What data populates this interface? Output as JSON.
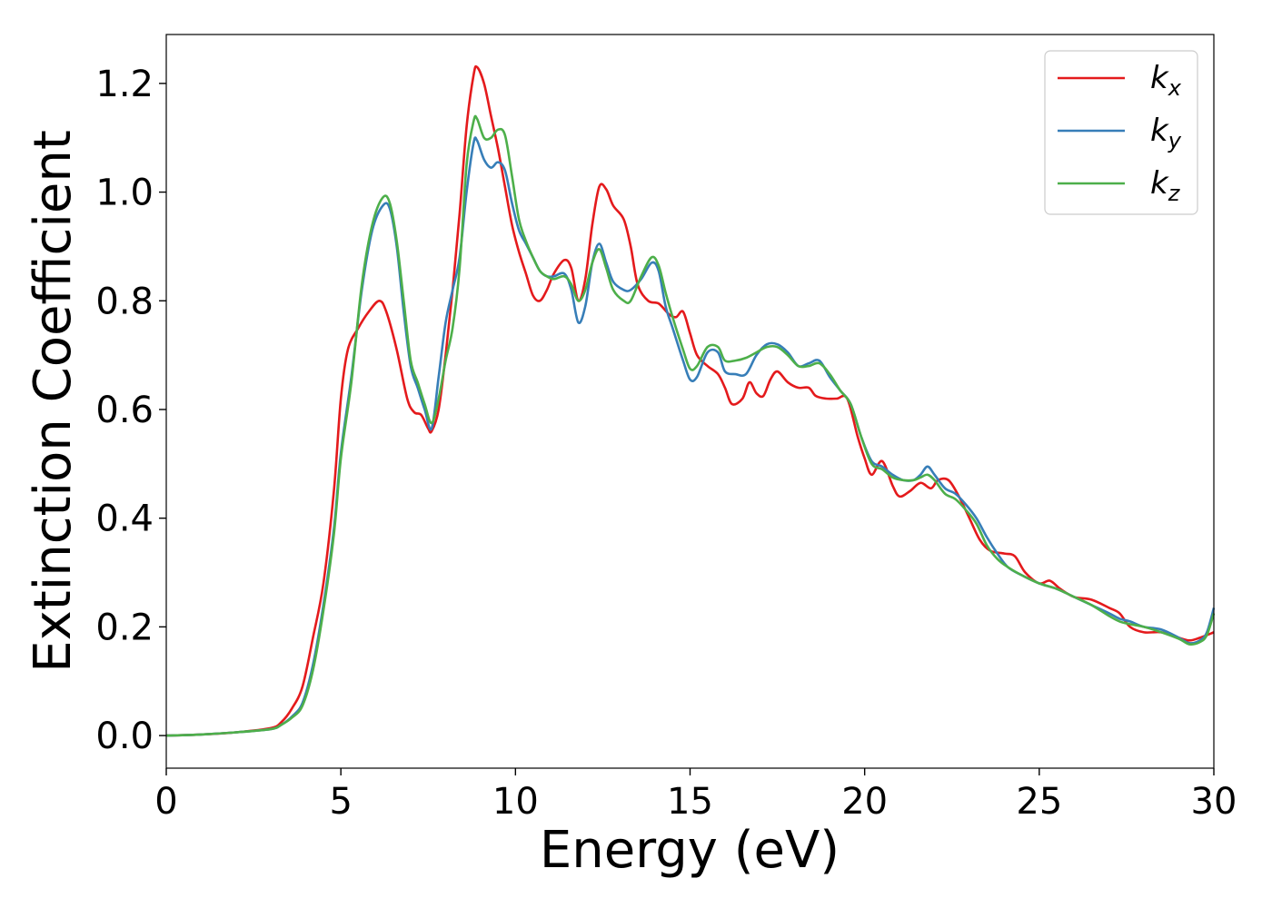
{
  "chart_data": {
    "type": "line",
    "title": "",
    "xlabel": "Energy (eV)",
    "ylabel": "Extinction Coefficient",
    "xlim": [
      0,
      30
    ],
    "ylim": [
      -0.06,
      1.29
    ],
    "xticks": [
      0,
      5,
      10,
      15,
      20,
      25,
      30
    ],
    "xtick_labels": [
      "0",
      "5",
      "10",
      "15",
      "20",
      "25",
      "30"
    ],
    "yticks": [
      0.0,
      0.2,
      0.4,
      0.6,
      0.8,
      1.0,
      1.2
    ],
    "ytick_labels": [
      "0.0",
      "0.2",
      "0.4",
      "0.6",
      "0.8",
      "1.0",
      "1.2"
    ],
    "grid": false,
    "legend_position": "top-right",
    "series": [
      {
        "name": "k",
        "subscript": "x",
        "color": "#e41a1c",
        "points": [
          [
            0,
            0.0
          ],
          [
            1,
            0.002
          ],
          [
            2,
            0.006
          ],
          [
            3,
            0.014
          ],
          [
            3.3,
            0.025
          ],
          [
            3.6,
            0.05
          ],
          [
            3.9,
            0.09
          ],
          [
            4.2,
            0.18
          ],
          [
            4.5,
            0.28
          ],
          [
            4.8,
            0.45
          ],
          [
            5.0,
            0.62
          ],
          [
            5.2,
            0.71
          ],
          [
            5.5,
            0.75
          ],
          [
            5.8,
            0.78
          ],
          [
            6.1,
            0.8
          ],
          [
            6.3,
            0.78
          ],
          [
            6.6,
            0.71
          ],
          [
            6.9,
            0.62
          ],
          [
            7.1,
            0.595
          ],
          [
            7.3,
            0.59
          ],
          [
            7.5,
            0.565
          ],
          [
            7.6,
            0.56
          ],
          [
            7.8,
            0.6
          ],
          [
            8.0,
            0.7
          ],
          [
            8.2,
            0.82
          ],
          [
            8.4,
            0.96
          ],
          [
            8.6,
            1.12
          ],
          [
            8.8,
            1.215
          ],
          [
            8.9,
            1.23
          ],
          [
            9.1,
            1.2
          ],
          [
            9.3,
            1.14
          ],
          [
            9.5,
            1.08
          ],
          [
            9.7,
            1.01
          ],
          [
            9.9,
            0.94
          ],
          [
            10.1,
            0.89
          ],
          [
            10.3,
            0.85
          ],
          [
            10.5,
            0.81
          ],
          [
            10.7,
            0.8
          ],
          [
            10.9,
            0.82
          ],
          [
            11.1,
            0.85
          ],
          [
            11.4,
            0.875
          ],
          [
            11.6,
            0.86
          ],
          [
            11.8,
            0.8
          ],
          [
            12.0,
            0.84
          ],
          [
            12.2,
            0.94
          ],
          [
            12.4,
            1.01
          ],
          [
            12.6,
            1.005
          ],
          [
            12.8,
            0.975
          ],
          [
            13.1,
            0.95
          ],
          [
            13.3,
            0.9
          ],
          [
            13.5,
            0.83
          ],
          [
            13.8,
            0.8
          ],
          [
            14.1,
            0.795
          ],
          [
            14.4,
            0.775
          ],
          [
            14.6,
            0.77
          ],
          [
            14.8,
            0.78
          ],
          [
            15.0,
            0.74
          ],
          [
            15.2,
            0.7
          ],
          [
            15.5,
            0.68
          ],
          [
            15.8,
            0.665
          ],
          [
            16.0,
            0.64
          ],
          [
            16.2,
            0.61
          ],
          [
            16.5,
            0.62
          ],
          [
            16.7,
            0.65
          ],
          [
            16.9,
            0.63
          ],
          [
            17.1,
            0.625
          ],
          [
            17.3,
            0.655
          ],
          [
            17.5,
            0.67
          ],
          [
            17.8,
            0.65
          ],
          [
            18.1,
            0.64
          ],
          [
            18.4,
            0.64
          ],
          [
            18.6,
            0.625
          ],
          [
            18.9,
            0.62
          ],
          [
            19.2,
            0.62
          ],
          [
            19.5,
            0.62
          ],
          [
            19.8,
            0.55
          ],
          [
            20.0,
            0.51
          ],
          [
            20.2,
            0.48
          ],
          [
            20.5,
            0.505
          ],
          [
            20.8,
            0.46
          ],
          [
            21.0,
            0.44
          ],
          [
            21.3,
            0.45
          ],
          [
            21.6,
            0.465
          ],
          [
            21.9,
            0.455
          ],
          [
            22.1,
            0.47
          ],
          [
            22.4,
            0.47
          ],
          [
            22.7,
            0.44
          ],
          [
            23.0,
            0.4
          ],
          [
            23.3,
            0.36
          ],
          [
            23.6,
            0.34
          ],
          [
            24.0,
            0.335
          ],
          [
            24.3,
            0.33
          ],
          [
            24.6,
            0.3
          ],
          [
            25.0,
            0.28
          ],
          [
            25.3,
            0.285
          ],
          [
            25.6,
            0.27
          ],
          [
            26.0,
            0.255
          ],
          [
            26.5,
            0.25
          ],
          [
            27.0,
            0.235
          ],
          [
            27.3,
            0.225
          ],
          [
            27.6,
            0.2
          ],
          [
            28.0,
            0.19
          ],
          [
            28.5,
            0.19
          ],
          [
            29.0,
            0.18
          ],
          [
            29.3,
            0.175
          ],
          [
            29.6,
            0.18
          ],
          [
            30.0,
            0.19
          ]
        ]
      },
      {
        "name": "k",
        "subscript": "y",
        "color": "#377eb8",
        "points": [
          [
            0,
            0.0
          ],
          [
            1,
            0.002
          ],
          [
            2,
            0.006
          ],
          [
            3,
            0.012
          ],
          [
            3.3,
            0.02
          ],
          [
            3.6,
            0.035
          ],
          [
            3.9,
            0.06
          ],
          [
            4.2,
            0.13
          ],
          [
            4.5,
            0.24
          ],
          [
            4.8,
            0.38
          ],
          [
            5.0,
            0.52
          ],
          [
            5.3,
            0.66
          ],
          [
            5.6,
            0.82
          ],
          [
            5.9,
            0.93
          ],
          [
            6.2,
            0.975
          ],
          [
            6.4,
            0.97
          ],
          [
            6.6,
            0.9
          ],
          [
            6.8,
            0.78
          ],
          [
            7.0,
            0.68
          ],
          [
            7.2,
            0.64
          ],
          [
            7.4,
            0.6
          ],
          [
            7.6,
            0.565
          ],
          [
            7.8,
            0.66
          ],
          [
            8.0,
            0.76
          ],
          [
            8.2,
            0.82
          ],
          [
            8.4,
            0.88
          ],
          [
            8.6,
            1.0
          ],
          [
            8.8,
            1.09
          ],
          [
            8.9,
            1.095
          ],
          [
            9.1,
            1.06
          ],
          [
            9.3,
            1.045
          ],
          [
            9.5,
            1.055
          ],
          [
            9.7,
            1.04
          ],
          [
            9.9,
            0.98
          ],
          [
            10.1,
            0.93
          ],
          [
            10.3,
            0.905
          ],
          [
            10.5,
            0.88
          ],
          [
            10.7,
            0.855
          ],
          [
            10.9,
            0.845
          ],
          [
            11.1,
            0.845
          ],
          [
            11.4,
            0.85
          ],
          [
            11.6,
            0.82
          ],
          [
            11.8,
            0.76
          ],
          [
            12.0,
            0.79
          ],
          [
            12.2,
            0.87
          ],
          [
            12.4,
            0.905
          ],
          [
            12.6,
            0.87
          ],
          [
            12.8,
            0.835
          ],
          [
            13.1,
            0.82
          ],
          [
            13.3,
            0.82
          ],
          [
            13.6,
            0.84
          ],
          [
            13.9,
            0.87
          ],
          [
            14.1,
            0.855
          ],
          [
            14.3,
            0.79
          ],
          [
            14.5,
            0.75
          ],
          [
            14.8,
            0.69
          ],
          [
            15.0,
            0.655
          ],
          [
            15.2,
            0.66
          ],
          [
            15.5,
            0.705
          ],
          [
            15.8,
            0.705
          ],
          [
            16.0,
            0.67
          ],
          [
            16.3,
            0.665
          ],
          [
            16.6,
            0.665
          ],
          [
            16.9,
            0.7
          ],
          [
            17.2,
            0.72
          ],
          [
            17.5,
            0.72
          ],
          [
            17.8,
            0.705
          ],
          [
            18.1,
            0.68
          ],
          [
            18.4,
            0.685
          ],
          [
            18.7,
            0.69
          ],
          [
            19.0,
            0.66
          ],
          [
            19.3,
            0.635
          ],
          [
            19.6,
            0.61
          ],
          [
            19.9,
            0.55
          ],
          [
            20.2,
            0.505
          ],
          [
            20.5,
            0.495
          ],
          [
            20.8,
            0.48
          ],
          [
            21.1,
            0.47
          ],
          [
            21.4,
            0.47
          ],
          [
            21.6,
            0.48
          ],
          [
            21.8,
            0.495
          ],
          [
            22.0,
            0.48
          ],
          [
            22.3,
            0.455
          ],
          [
            22.6,
            0.445
          ],
          [
            22.9,
            0.425
          ],
          [
            23.2,
            0.4
          ],
          [
            23.5,
            0.365
          ],
          [
            23.8,
            0.335
          ],
          [
            24.1,
            0.31
          ],
          [
            24.5,
            0.295
          ],
          [
            25.0,
            0.28
          ],
          [
            25.5,
            0.27
          ],
          [
            26.0,
            0.255
          ],
          [
            26.5,
            0.24
          ],
          [
            27.0,
            0.225
          ],
          [
            27.3,
            0.215
          ],
          [
            27.6,
            0.21
          ],
          [
            28.0,
            0.2
          ],
          [
            28.5,
            0.195
          ],
          [
            29.0,
            0.18
          ],
          [
            29.3,
            0.17
          ],
          [
            29.6,
            0.175
          ],
          [
            29.8,
            0.19
          ],
          [
            30.0,
            0.235
          ]
        ]
      },
      {
        "name": "k",
        "subscript": "z",
        "color": "#4daf4a",
        "points": [
          [
            0,
            0.0
          ],
          [
            1,
            0.002
          ],
          [
            2,
            0.006
          ],
          [
            3,
            0.012
          ],
          [
            3.3,
            0.02
          ],
          [
            3.6,
            0.033
          ],
          [
            3.9,
            0.055
          ],
          [
            4.2,
            0.12
          ],
          [
            4.5,
            0.23
          ],
          [
            4.8,
            0.37
          ],
          [
            5.0,
            0.51
          ],
          [
            5.3,
            0.65
          ],
          [
            5.6,
            0.83
          ],
          [
            5.9,
            0.94
          ],
          [
            6.2,
            0.99
          ],
          [
            6.4,
            0.98
          ],
          [
            6.6,
            0.91
          ],
          [
            6.8,
            0.8
          ],
          [
            7.0,
            0.69
          ],
          [
            7.2,
            0.65
          ],
          [
            7.4,
            0.61
          ],
          [
            7.6,
            0.575
          ],
          [
            7.8,
            0.62
          ],
          [
            8.0,
            0.69
          ],
          [
            8.2,
            0.75
          ],
          [
            8.4,
            0.86
          ],
          [
            8.6,
            1.05
          ],
          [
            8.8,
            1.13
          ],
          [
            8.9,
            1.135
          ],
          [
            9.1,
            1.1
          ],
          [
            9.3,
            1.1
          ],
          [
            9.5,
            1.115
          ],
          [
            9.7,
            1.105
          ],
          [
            9.9,
            1.03
          ],
          [
            10.1,
            0.95
          ],
          [
            10.3,
            0.91
          ],
          [
            10.5,
            0.88
          ],
          [
            10.7,
            0.855
          ],
          [
            10.9,
            0.845
          ],
          [
            11.1,
            0.84
          ],
          [
            11.4,
            0.845
          ],
          [
            11.6,
            0.83
          ],
          [
            11.8,
            0.8
          ],
          [
            12.0,
            0.82
          ],
          [
            12.2,
            0.87
          ],
          [
            12.4,
            0.895
          ],
          [
            12.6,
            0.86
          ],
          [
            12.8,
            0.82
          ],
          [
            13.1,
            0.8
          ],
          [
            13.3,
            0.8
          ],
          [
            13.6,
            0.845
          ],
          [
            13.9,
            0.88
          ],
          [
            14.1,
            0.865
          ],
          [
            14.3,
            0.815
          ],
          [
            14.5,
            0.77
          ],
          [
            14.8,
            0.71
          ],
          [
            15.0,
            0.675
          ],
          [
            15.2,
            0.68
          ],
          [
            15.5,
            0.715
          ],
          [
            15.8,
            0.715
          ],
          [
            16.0,
            0.69
          ],
          [
            16.3,
            0.69
          ],
          [
            16.6,
            0.695
          ],
          [
            16.9,
            0.705
          ],
          [
            17.2,
            0.715
          ],
          [
            17.5,
            0.715
          ],
          [
            17.8,
            0.7
          ],
          [
            18.1,
            0.68
          ],
          [
            18.4,
            0.68
          ],
          [
            18.7,
            0.685
          ],
          [
            19.0,
            0.665
          ],
          [
            19.3,
            0.635
          ],
          [
            19.6,
            0.61
          ],
          [
            19.9,
            0.55
          ],
          [
            20.2,
            0.5
          ],
          [
            20.5,
            0.49
          ],
          [
            20.8,
            0.475
          ],
          [
            21.1,
            0.47
          ],
          [
            21.4,
            0.47
          ],
          [
            21.6,
            0.475
          ],
          [
            21.8,
            0.48
          ],
          [
            22.0,
            0.47
          ],
          [
            22.3,
            0.445
          ],
          [
            22.6,
            0.435
          ],
          [
            22.9,
            0.415
          ],
          [
            23.2,
            0.39
          ],
          [
            23.5,
            0.35
          ],
          [
            23.8,
            0.325
          ],
          [
            24.1,
            0.31
          ],
          [
            24.5,
            0.295
          ],
          [
            25.0,
            0.28
          ],
          [
            25.5,
            0.27
          ],
          [
            26.0,
            0.255
          ],
          [
            26.5,
            0.24
          ],
          [
            27.0,
            0.22
          ],
          [
            27.3,
            0.21
          ],
          [
            27.6,
            0.205
          ],
          [
            28.0,
            0.2
          ],
          [
            28.5,
            0.19
          ],
          [
            29.0,
            0.178
          ],
          [
            29.3,
            0.168
          ],
          [
            29.6,
            0.172
          ],
          [
            29.8,
            0.185
          ],
          [
            30.0,
            0.225
          ]
        ]
      }
    ]
  }
}
